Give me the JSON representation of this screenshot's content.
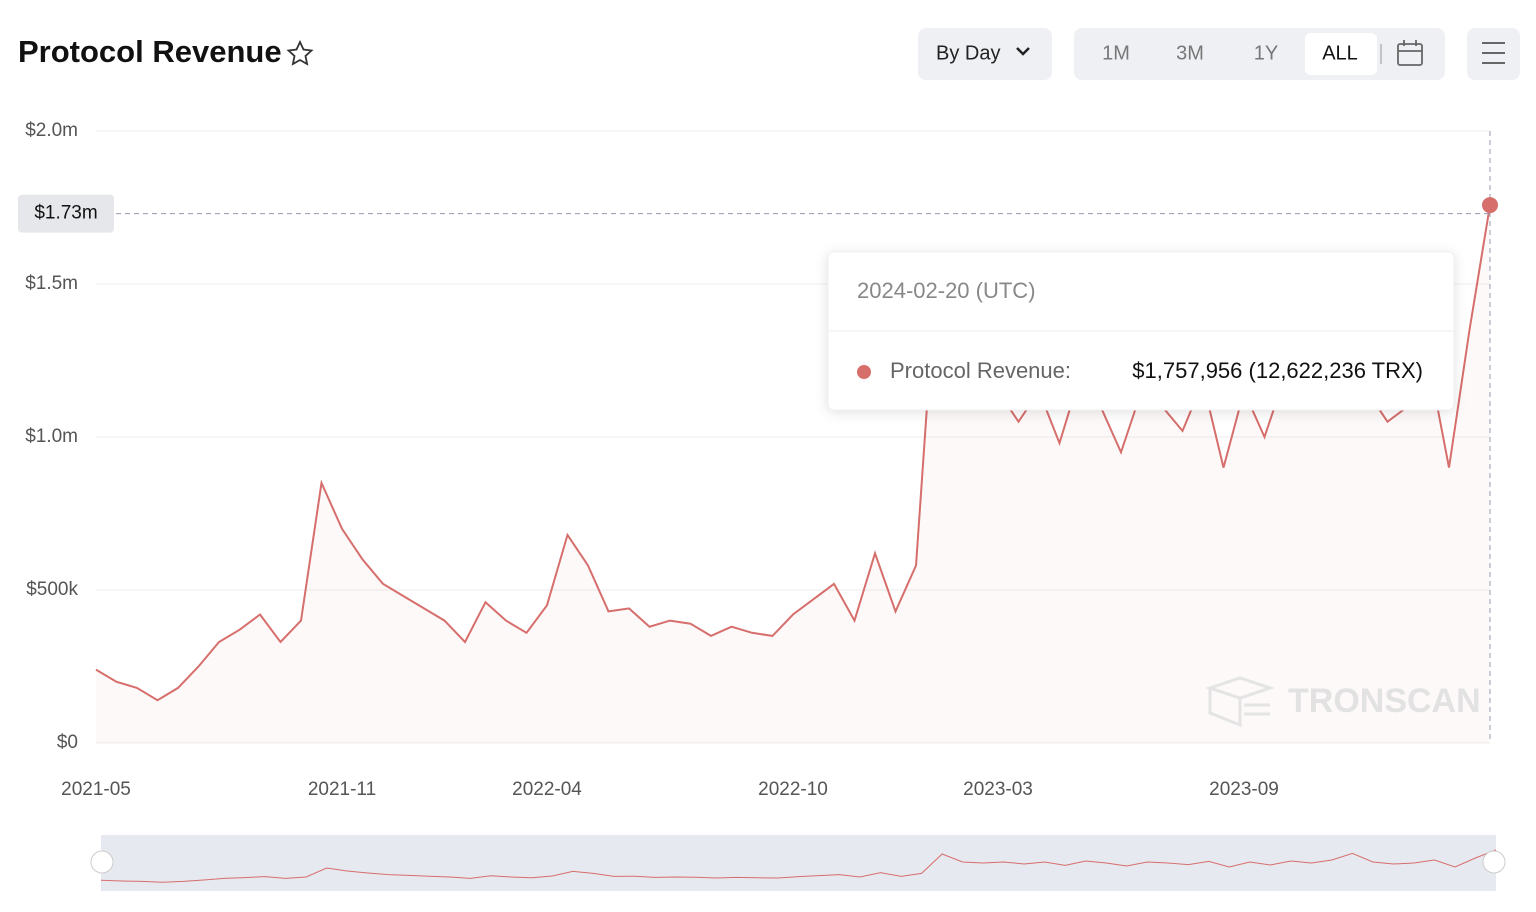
{
  "header": {
    "title": "Protocol Revenue",
    "granularity": "By Day",
    "ranges": [
      "1M",
      "3M",
      "1Y",
      "ALL"
    ],
    "selected_range": "ALL"
  },
  "chart_data": {
    "type": "line",
    "categories": [
      "2021-05-01",
      "2021-05-16",
      "2021-06-01",
      "2021-06-16",
      "2021-07-01",
      "2021-07-16",
      "2021-08-01",
      "2021-08-16",
      "2021-09-01",
      "2021-09-16",
      "2021-10-01",
      "2021-10-16",
      "2021-11-01",
      "2021-11-16",
      "2021-12-01",
      "2021-12-16",
      "2022-01-01",
      "2022-01-16",
      "2022-02-01",
      "2022-02-16",
      "2022-03-01",
      "2022-03-16",
      "2022-04-01",
      "2022-04-16",
      "2022-05-01",
      "2022-05-16",
      "2022-06-01",
      "2022-06-16",
      "2022-07-01",
      "2022-07-16",
      "2022-08-01",
      "2022-08-16",
      "2022-09-01",
      "2022-09-16",
      "2022-10-01",
      "2022-10-16",
      "2022-11-01",
      "2022-11-16",
      "2022-12-01",
      "2022-12-16",
      "2023-01-01",
      "2023-01-16",
      "2023-02-01",
      "2023-02-16",
      "2023-03-01",
      "2023-03-16",
      "2023-04-01",
      "2023-04-16",
      "2023-05-01",
      "2023-05-16",
      "2023-06-01",
      "2023-06-16",
      "2023-07-01",
      "2023-07-16",
      "2023-08-01",
      "2023-08-16",
      "2023-09-01",
      "2023-09-16",
      "2023-10-01",
      "2023-10-16",
      "2023-11-01",
      "2023-11-16",
      "2023-12-01",
      "2023-12-16",
      "2024-01-01",
      "2024-01-16",
      "2024-02-01",
      "2024-02-16",
      "2024-02-20"
    ],
    "series": [
      {
        "name": "Protocol Revenue",
        "color": "#d66e6c",
        "values": [
          240000,
          200000,
          180000,
          140000,
          180000,
          250000,
          330000,
          370000,
          420000,
          330000,
          400000,
          850000,
          700000,
          600000,
          520000,
          480000,
          440000,
          400000,
          330000,
          460000,
          400000,
          360000,
          450000,
          680000,
          580000,
          430000,
          440000,
          380000,
          400000,
          390000,
          350000,
          380000,
          360000,
          350000,
          420000,
          470000,
          520000,
          400000,
          620000,
          430000,
          580000,
          1550000,
          1150000,
          1100000,
          1150000,
          1050000,
          1150000,
          980000,
          1200000,
          1100000,
          950000,
          1150000,
          1100000,
          1020000,
          1180000,
          900000,
          1150000,
          1000000,
          1200000,
          1100000,
          1250000,
          1580000,
          1150000,
          1050000,
          1100000,
          1250000,
          900000,
          1350000,
          1757956
        ]
      }
    ],
    "ylim": [
      0,
      2000000
    ],
    "yticks": [
      {
        "value": 0,
        "label": "$0"
      },
      {
        "value": 500000,
        "label": "$500k"
      },
      {
        "value": 1000000,
        "label": "$1.0m"
      },
      {
        "value": 1500000,
        "label": "$1.5m"
      },
      {
        "value": 2000000,
        "label": "$2.0m"
      }
    ],
    "xticks": [
      "2021-05",
      "2021-11",
      "2022-04",
      "2022-10",
      "2023-03",
      "2023-09"
    ],
    "grid": true,
    "pointer": {
      "value": 1730000,
      "label": "$1.73m"
    },
    "tooltip": {
      "date": "2024-02-20 (UTC)",
      "label": "Protocol Revenue:",
      "value": "$1,757,956 (12,622,236 TRX)"
    },
    "watermark": "TRONSCAN"
  }
}
